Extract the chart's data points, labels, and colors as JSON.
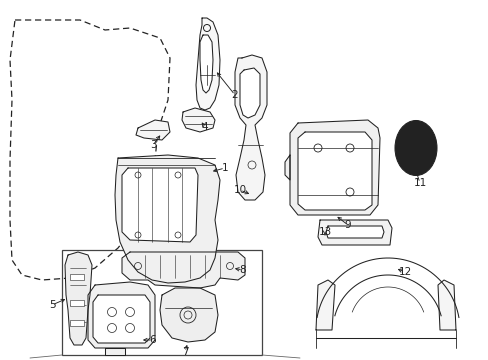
{
  "background_color": "#ffffff",
  "line_color": "#222222",
  "label_color": "#000000",
  "figsize": [
    4.89,
    3.6
  ],
  "dpi": 100,
  "label_fontsize": 7.5,
  "lw": 0.75
}
